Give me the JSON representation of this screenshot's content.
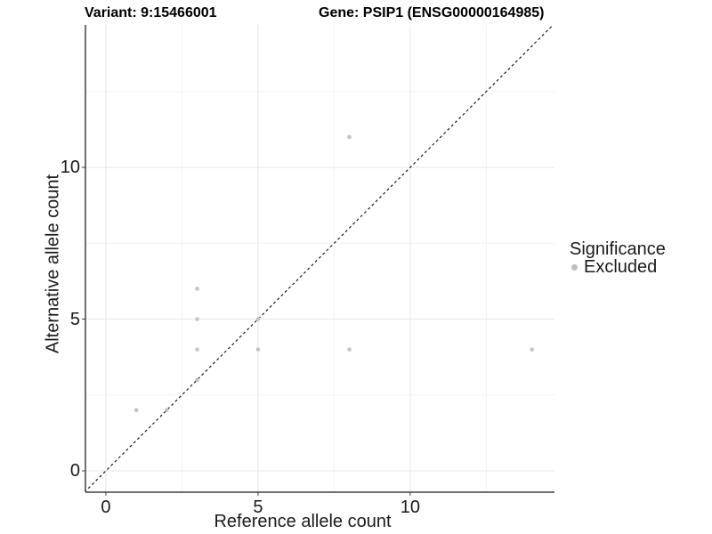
{
  "titles": {
    "variant": "Variant: 9:15466001",
    "gene": "Gene: PSIP1 (ENSG00000164985)"
  },
  "legend": {
    "title": "Significance",
    "items": [
      {
        "label": "Excluded",
        "color": "#bfbfbf"
      }
    ]
  },
  "colors": {
    "point": "#c4c4c4",
    "grid_major": "#e7e7e7",
    "grid_minor": "#f3f3f3",
    "axis_line": "#404040",
    "reference_line": "#1a1a1a",
    "background": "#ffffff"
  },
  "chart_data": {
    "type": "scatter",
    "title_left": "Variant: 9:15466001",
    "title_right": "Gene: PSIP1 (ENSG00000164985)",
    "xlabel": "Reference allele count",
    "ylabel": "Alternative allele count",
    "xlim": [
      -0.672,
      14.74
    ],
    "ylim": [
      -0.704,
      14.695
    ],
    "x_ticks": [
      0,
      5,
      10
    ],
    "y_ticks": [
      0,
      5,
      10
    ],
    "x_minor_gridlines": [
      2.5,
      7.5,
      12.5
    ],
    "y_minor_gridlines": [
      2.5,
      7.5,
      12.5
    ],
    "grid": true,
    "legend_position": "right",
    "reference_line": {
      "type": "identity",
      "equation": "y = x",
      "style": "dashed"
    },
    "series": [
      {
        "name": "Excluded",
        "color": "#c4c4c4",
        "points": [
          [
            1,
            2
          ],
          [
            2,
            2
          ],
          [
            3,
            3
          ],
          [
            3,
            4
          ],
          [
            3,
            5
          ],
          [
            3,
            6
          ],
          [
            5,
            4
          ],
          [
            5,
            5
          ],
          [
            8,
            4
          ],
          [
            8,
            11
          ],
          [
            14,
            4
          ]
        ]
      }
    ]
  }
}
